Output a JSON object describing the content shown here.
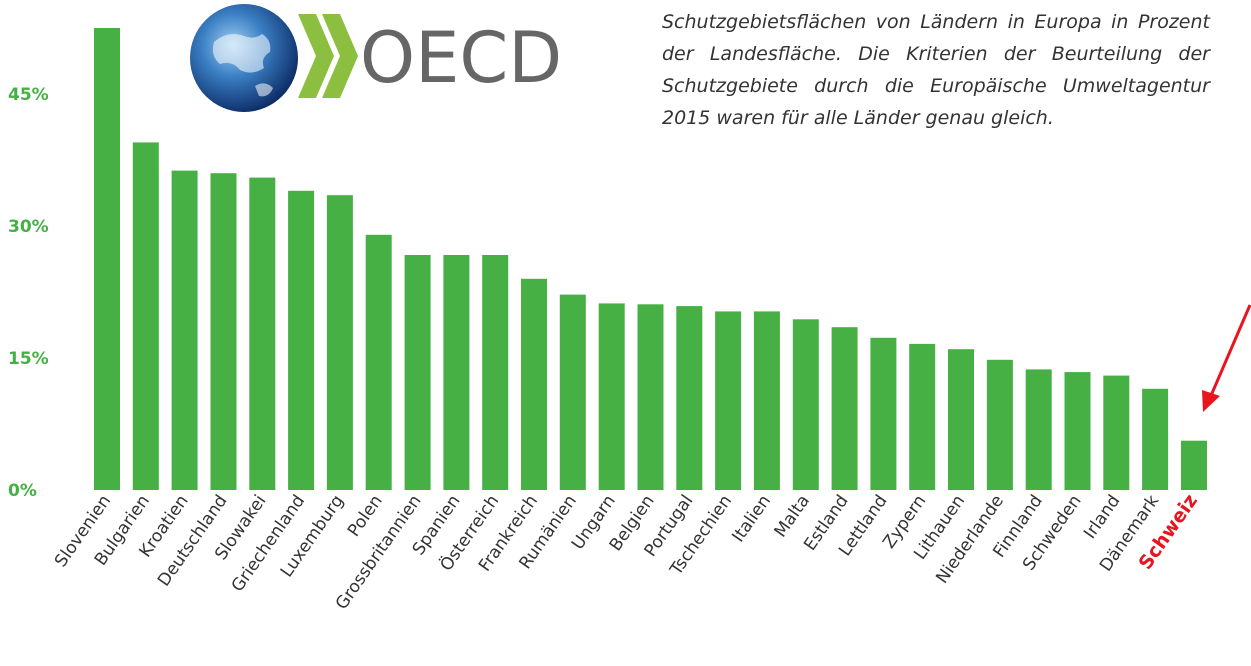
{
  "logo": {
    "text": "OECD"
  },
  "caption": "Schutzgebietsflächen von Ländern in Europa in Prozent der Landesfläche. Die Kriterien der Beurteilung der Schutzgebiete durch die Europäische Umweltagentur 2015 waren für alle Länder genau gleich.",
  "colors": {
    "bar": "#46b045",
    "highlight": "#e8141e",
    "tick": "#46b045"
  },
  "chart_data": {
    "type": "bar",
    "title": "",
    "xlabel": "",
    "ylabel": "",
    "ylim": [
      0,
      52
    ],
    "yticks": [
      {
        "value": 0,
        "label": "0%"
      },
      {
        "value": 15,
        "label": "15%"
      },
      {
        "value": 30,
        "label": "30%"
      },
      {
        "value": 45,
        "label": "45%"
      }
    ],
    "categories": [
      "Slovenien",
      "Bulgarien",
      "Kroatien",
      "Deutschland",
      "Slowakei",
      "Griechenland",
      "Luxemburg",
      "Polen",
      "Grossbritannien",
      "Spanien",
      "Österreich",
      "Frankreich",
      "Rumänien",
      "Ungarn",
      "Belgien",
      "Portugal",
      "Tschechien",
      "Italien",
      "Malta",
      "Estland",
      "Lettland",
      "Zypern",
      "Lithauen",
      "Niederlande",
      "Finnland",
      "Schweden",
      "Irland",
      "Dänemark",
      "Schweiz"
    ],
    "values": [
      52.5,
      39.5,
      36.3,
      36.0,
      35.5,
      34.0,
      33.5,
      29.0,
      26.7,
      26.7,
      26.7,
      24.0,
      22.2,
      21.2,
      21.1,
      20.9,
      20.3,
      20.3,
      19.4,
      18.5,
      17.3,
      16.6,
      16.0,
      14.8,
      13.7,
      13.4,
      13.0,
      11.5,
      5.6
    ],
    "highlight": "Schweiz",
    "grid": false,
    "legend": "none"
  }
}
